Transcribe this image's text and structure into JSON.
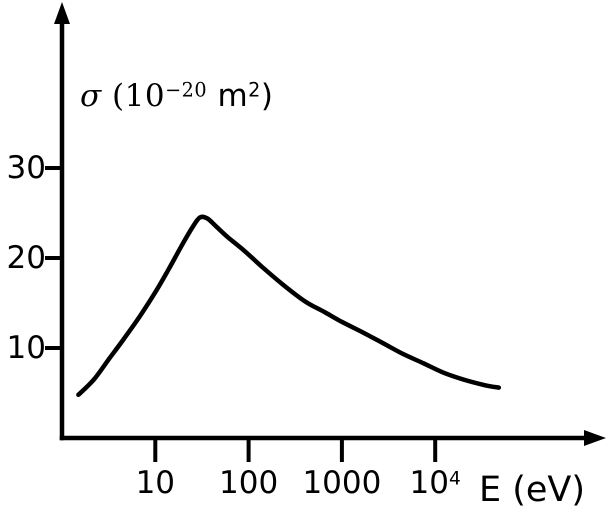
{
  "colors": {
    "ink": "#000000",
    "background": "#ffffff"
  },
  "y_axis": {
    "unit_label": {
      "sigma": "σ",
      "open": " (10",
      "exponent": "−20",
      "unit": " m",
      "unit_exponent": "2",
      "close": ")"
    },
    "ticks": [
      {
        "label": "30",
        "value": 30
      },
      {
        "label": "20",
        "value": 20
      },
      {
        "label": "10",
        "value": 10
      }
    ]
  },
  "x_axis": {
    "label": "E (eV)",
    "ticks": [
      {
        "base": "10",
        "exponent": "",
        "value": 10
      },
      {
        "base": "100",
        "exponent": "",
        "value": 100
      },
      {
        "base": "1000",
        "exponent": "",
        "value": 1000
      },
      {
        "base": "10",
        "exponent": "4",
        "value": 10000
      }
    ]
  },
  "chart_data": {
    "type": "line",
    "title": "",
    "xlabel": "E (eV)",
    "ylabel": "σ (10⁻²⁰ m²)",
    "x_scale": "log",
    "xlim": [
      1,
      100000
    ],
    "ylim": [
      0,
      40
    ],
    "x_ticks": [
      10,
      100,
      1000,
      10000
    ],
    "y_ticks": [
      10,
      20,
      30
    ],
    "grid": false,
    "legend": false,
    "series": [
      {
        "points": [
          [
            1.5,
            4.8
          ],
          [
            2.2,
            6.5
          ],
          [
            3.2,
            8.8
          ],
          [
            4.6,
            11.0
          ],
          [
            6.8,
            13.5
          ],
          [
            10,
            16.2
          ],
          [
            14,
            18.8
          ],
          [
            19,
            21.3
          ],
          [
            25,
            23.4
          ],
          [
            30,
            24.5
          ],
          [
            36,
            24.4
          ],
          [
            45,
            23.5
          ],
          [
            60,
            22.3
          ],
          [
            90,
            20.8
          ],
          [
            140,
            19.0
          ],
          [
            230,
            17.1
          ],
          [
            400,
            15.2
          ],
          [
            650,
            14.0
          ],
          [
            1000,
            12.9
          ],
          [
            1700,
            11.7
          ],
          [
            2800,
            10.5
          ],
          [
            4600,
            9.3
          ],
          [
            7500,
            8.3
          ],
          [
            12000,
            7.3
          ],
          [
            20000,
            6.5
          ],
          [
            33000,
            5.9
          ],
          [
            48000,
            5.6
          ]
        ]
      }
    ]
  }
}
